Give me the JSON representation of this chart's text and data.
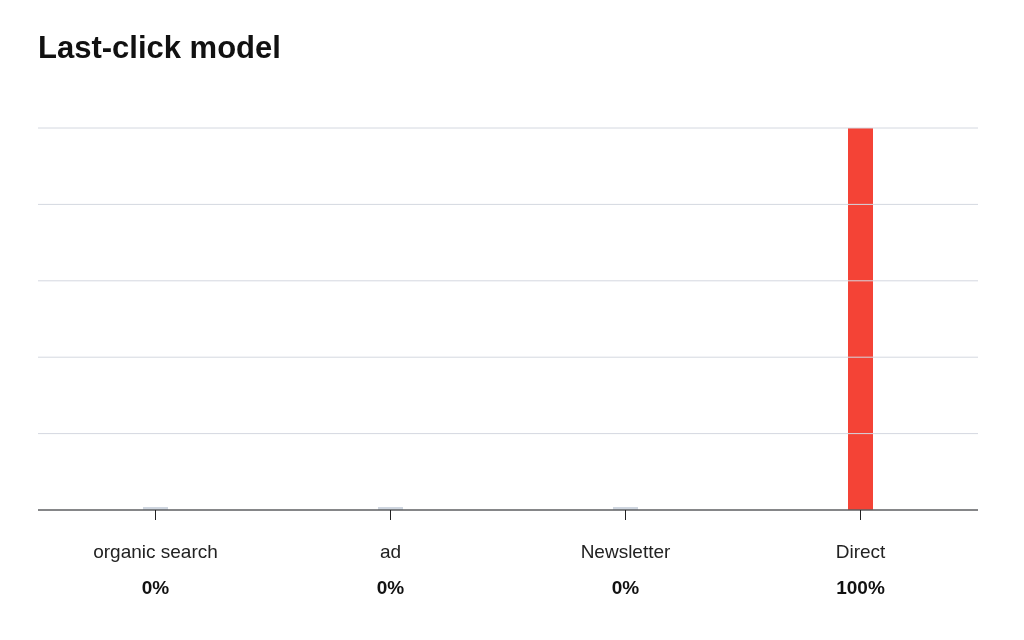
{
  "chart_data": {
    "type": "bar",
    "title": "Last-click model",
    "categories": [
      "organic search",
      "ad",
      "Newsletter",
      "Direct"
    ],
    "values": [
      0,
      0,
      0,
      100
    ],
    "colors": [
      "#cfd6e0",
      "#cfd6e0",
      "#cfd6e0",
      "#f44336"
    ],
    "value_labels": [
      "0%",
      "0%",
      "0%",
      "100%"
    ],
    "ylim": [
      0,
      100
    ],
    "yticks": [
      {
        "value": 0,
        "label": null
      },
      {
        "value": 20,
        "label": null
      },
      {
        "value": 40,
        "label": null
      },
      {
        "value": 60,
        "label": null
      },
      {
        "value": 80,
        "label": null
      },
      {
        "value": 100,
        "label": null
      }
    ],
    "grid": "y",
    "tick_labels": "x",
    "legend": false
  }
}
